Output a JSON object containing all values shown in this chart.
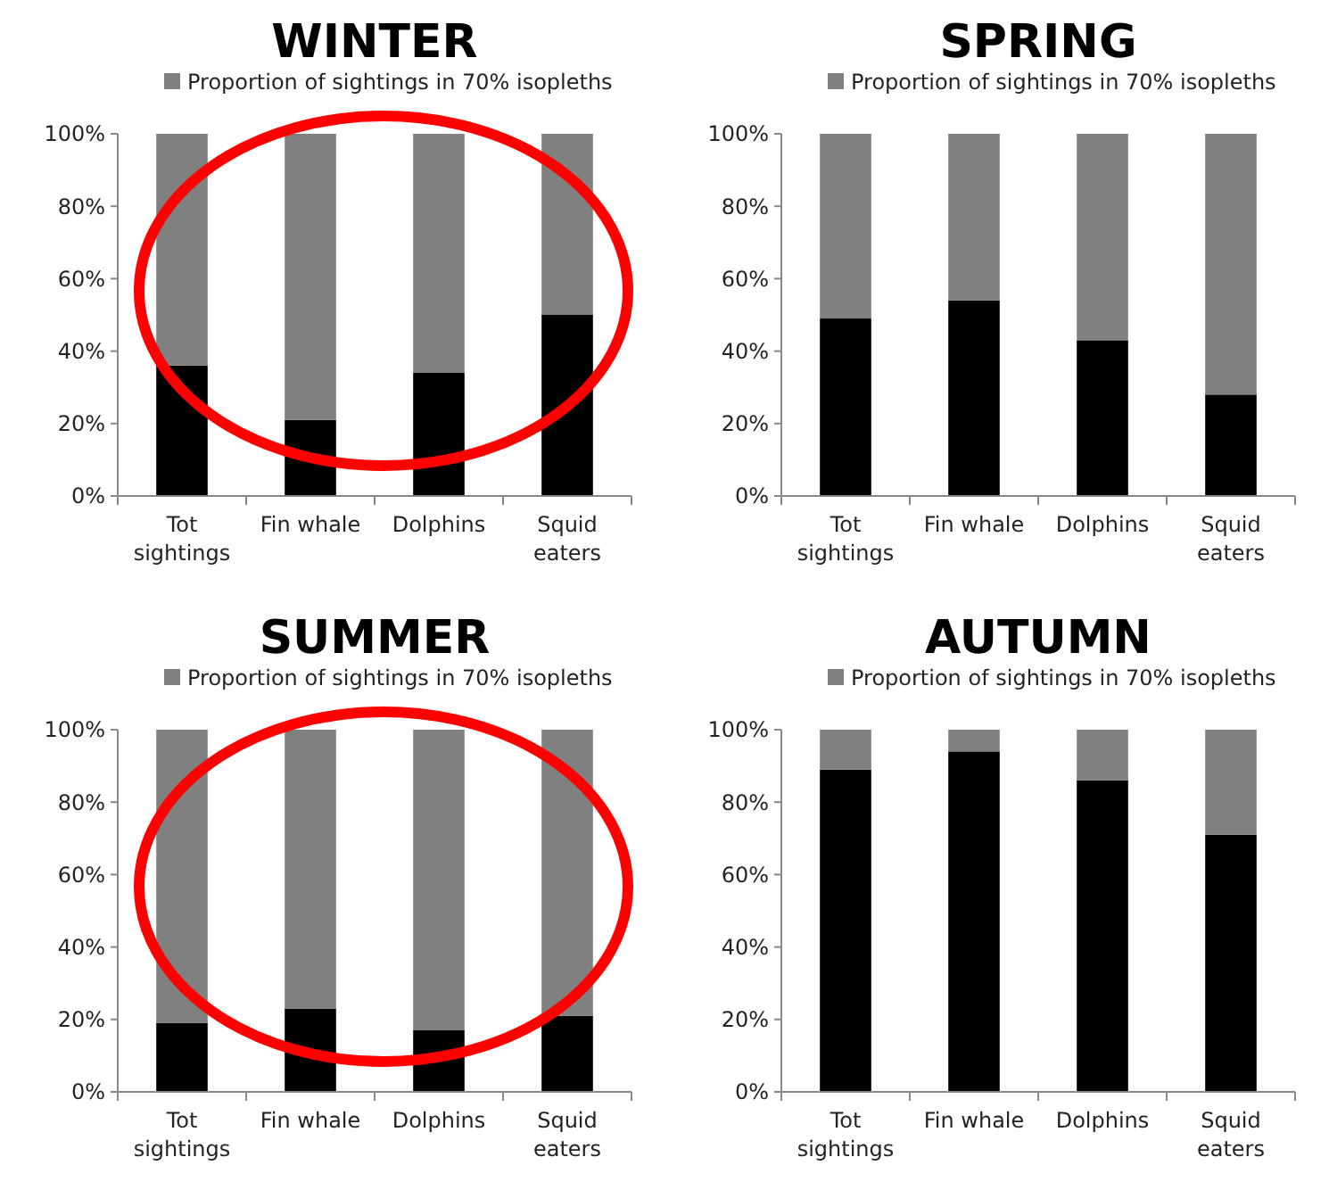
{
  "chart_data": [
    {
      "type": "bar",
      "title": "WINTER",
      "stacked": true,
      "legend": "top",
      "categories": [
        "Tot sightings",
        "Fin whale",
        "Dolphins",
        "Squid eaters"
      ],
      "ylim": [
        0,
        100
      ],
      "yticks": [
        {
          "value": 0,
          "label": "0%"
        },
        {
          "value": 20,
          "label": "20%"
        },
        {
          "value": 40,
          "label": "40%"
        },
        {
          "value": 60,
          "label": "60%"
        },
        {
          "value": 80,
          "label": "80%"
        },
        {
          "value": 100,
          "label": "100%"
        }
      ],
      "series": [
        {
          "color": "#000000",
          "values": [
            36,
            21,
            34,
            50
          ]
        },
        {
          "name": "Proportion of sightings in 70% isopleths",
          "color": "#808080",
          "values": [
            64,
            79,
            66,
            50
          ]
        }
      ]
    },
    {
      "type": "bar",
      "title": "SPRING",
      "stacked": true,
      "legend": "top",
      "categories": [
        "Tot sightings",
        "Fin whale",
        "Dolphins",
        "Squid eaters"
      ],
      "ylim": [
        0,
        100
      ],
      "yticks": [
        {
          "value": 0,
          "label": "0%"
        },
        {
          "value": 20,
          "label": "20%"
        },
        {
          "value": 40,
          "label": "40%"
        },
        {
          "value": 60,
          "label": "60%"
        },
        {
          "value": 80,
          "label": "80%"
        },
        {
          "value": 100,
          "label": "100%"
        }
      ],
      "series": [
        {
          "color": "#000000",
          "values": [
            49,
            54,
            43,
            28
          ]
        },
        {
          "name": "Proportion of sightings in 70% isopleths",
          "color": "#808080",
          "values": [
            51,
            46,
            57,
            72
          ]
        }
      ]
    },
    {
      "type": "bar",
      "title": "SUMMER",
      "stacked": true,
      "legend": "top",
      "categories": [
        "Tot sightings",
        "Fin whale",
        "Dolphins",
        "Squid eaters"
      ],
      "ylim": [
        0,
        100
      ],
      "yticks": [
        {
          "value": 0,
          "label": "0%"
        },
        {
          "value": 20,
          "label": "20%"
        },
        {
          "value": 40,
          "label": "40%"
        },
        {
          "value": 60,
          "label": "60%"
        },
        {
          "value": 80,
          "label": "80%"
        },
        {
          "value": 100,
          "label": "100%"
        }
      ],
      "series": [
        {
          "color": "#000000",
          "values": [
            19,
            23,
            17,
            21
          ]
        },
        {
          "name": "Proportion of sightings in 70% isopleths",
          "color": "#808080",
          "values": [
            81,
            77,
            83,
            79
          ]
        }
      ]
    },
    {
      "type": "bar",
      "title": "AUTUMN",
      "stacked": true,
      "legend": "top",
      "categories": [
        "Tot sightings",
        "Fin whale",
        "Dolphins",
        "Squid eaters"
      ],
      "ylim": [
        0,
        100
      ],
      "yticks": [
        {
          "value": 0,
          "label": "0%"
        },
        {
          "value": 20,
          "label": "20%"
        },
        {
          "value": 40,
          "label": "40%"
        },
        {
          "value": 60,
          "label": "60%"
        },
        {
          "value": 80,
          "label": "80%"
        },
        {
          "value": 100,
          "label": "100%"
        }
      ],
      "series": [
        {
          "color": "#000000",
          "values": [
            89,
            94,
            86,
            71
          ]
        },
        {
          "name": "Proportion of sightings in 70% isopleths",
          "color": "#808080",
          "values": [
            11,
            6,
            14,
            29
          ]
        }
      ]
    }
  ]
}
